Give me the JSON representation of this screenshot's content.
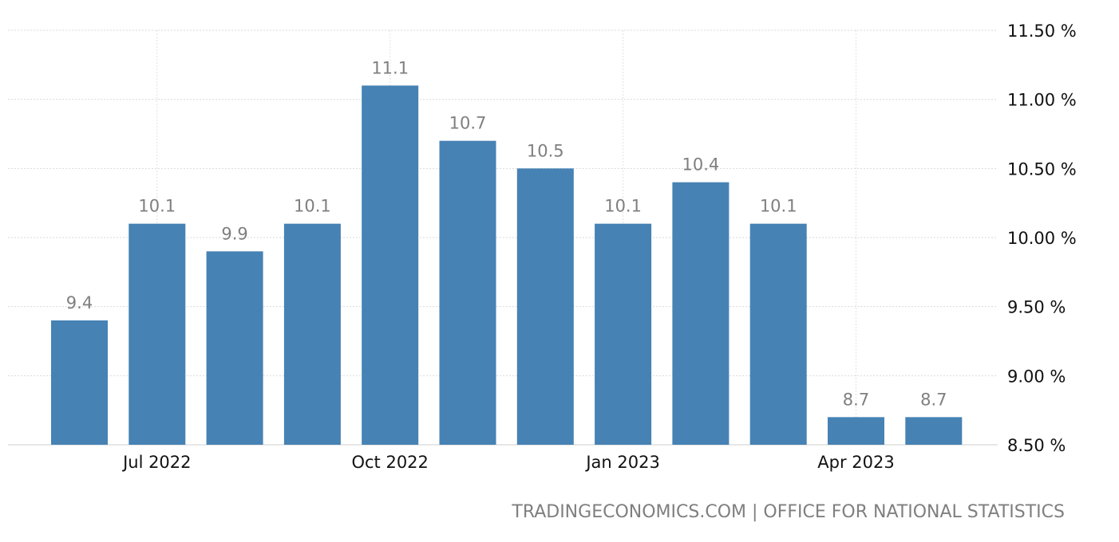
{
  "chart_data": {
    "type": "bar",
    "categories": [
      "Jun 2022",
      "Jul 2022",
      "Aug 2022",
      "Sep 2022",
      "Oct 2022",
      "Nov 2022",
      "Dec 2022",
      "Jan 2023",
      "Feb 2023",
      "Mar 2023",
      "Apr 2023",
      "May 2023"
    ],
    "values": [
      9.4,
      10.1,
      9.9,
      10.1,
      11.1,
      10.7,
      10.5,
      10.1,
      10.4,
      10.1,
      8.7,
      8.7
    ],
    "data_labels": [
      "9.4",
      "10.1",
      "9.9",
      "10.1",
      "11.1",
      "10.7",
      "10.5",
      "10.1",
      "10.4",
      "10.1",
      "8.7",
      "8.7"
    ],
    "x_tick_labels": [
      {
        "category": "Jul 2022",
        "label": "Jul 2022"
      },
      {
        "category": "Oct 2022",
        "label": "Oct 2022"
      },
      {
        "category": "Jan 2023",
        "label": "Jan 2023"
      },
      {
        "category": "Apr 2023",
        "label": "Apr 2023"
      }
    ],
    "y_ticks": [
      8.5,
      9.0,
      9.5,
      10.0,
      10.5,
      11.0,
      11.5
    ],
    "y_tick_labels": [
      "8.50 %",
      "9.00 %",
      "9.50 %",
      "10.00 %",
      "10.50 %",
      "11.00 %",
      "11.50 %"
    ],
    "ylim": [
      8.5,
      11.5
    ],
    "y_axis_side": "right",
    "grid": true,
    "bar_color": "#4682b4",
    "title": "",
    "xlabel": "",
    "ylabel": ""
  },
  "source": "TRADINGECONOMICS.COM | OFFICE FOR NATIONAL STATISTICS"
}
